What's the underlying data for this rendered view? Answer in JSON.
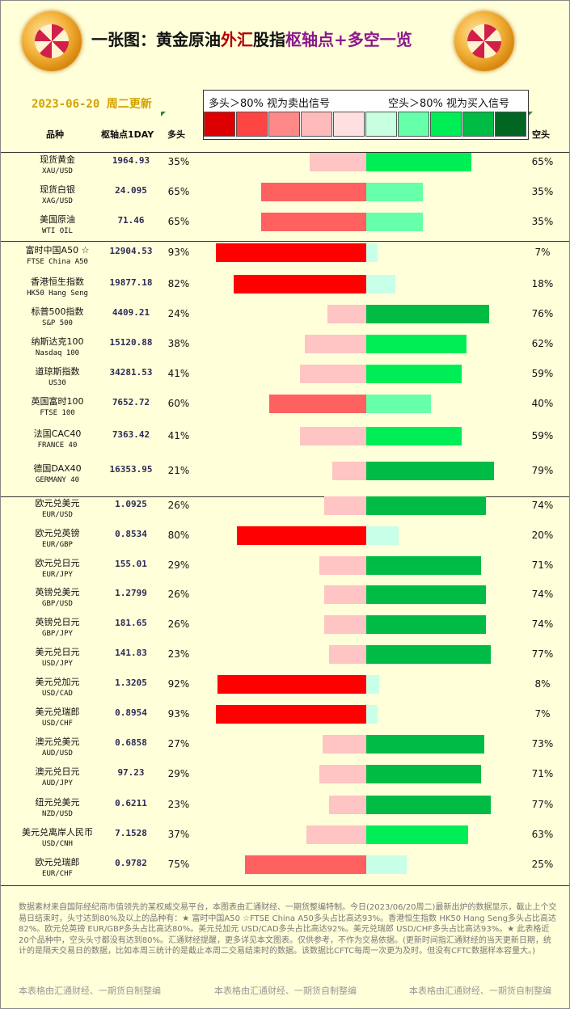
{
  "header": {
    "title_parts": [
      "一张图：黄金原油",
      "外汇",
      "股指",
      "枢轴点",
      "+多空一览"
    ],
    "title_colors": [
      "#111111",
      "#b00000",
      "#111111",
      "#8a1a8a",
      "#8a1a8a"
    ],
    "date": "2023-06-20 周二更新",
    "legend_long": "多头＞80% 视为卖出信号",
    "legend_short": "空头＞80% 视为买入信号"
  },
  "legend_colors": [
    "#dd0000",
    "#ff4444",
    "#ff8888",
    "#ffbbbb",
    "#ffe0e0",
    "#c8ffe0",
    "#66ffaa",
    "#00ee55",
    "#00bb44",
    "#006622"
  ],
  "columns": {
    "name": "品种",
    "pivot": "枢轴点1DAY",
    "long": "多头",
    "short": "空头"
  },
  "colors": {
    "long": [
      "#ffc4c4",
      "#ff6060",
      "#ff0000"
    ],
    "short": [
      "#c8ffe8",
      "#66ffaa",
      "#00ee55",
      "#00bb44"
    ]
  },
  "chart_data": {
    "type": "bar",
    "series": [
      {
        "name": "多头",
        "values": [
          35,
          65,
          65,
          93,
          82,
          24,
          38,
          41,
          60,
          41,
          21,
          26,
          80,
          29,
          26,
          26,
          23,
          92,
          93,
          27,
          29,
          23,
          37,
          75
        ]
      },
      {
        "name": "空头",
        "values": [
          65,
          35,
          35,
          7,
          18,
          76,
          62,
          59,
          40,
          59,
          79,
          74,
          20,
          71,
          74,
          74,
          77,
          8,
          7,
          73,
          71,
          77,
          63,
          25
        ]
      }
    ],
    "rows": [
      {
        "zh": "现货黄金",
        "en": "XAU/USD",
        "pivot": "1964.93",
        "long": 35,
        "short": 65,
        "long_label": "35%",
        "short_label": "65%"
      },
      {
        "zh": "现货白银",
        "en": "XAG/USD",
        "pivot": "24.095",
        "long": 65,
        "short": 35,
        "long_label": "65%",
        "short_label": "35%"
      },
      {
        "zh": "美国原油",
        "en": "WTI OIL",
        "pivot": "71.46",
        "long": 65,
        "short": 35,
        "long_label": "65%",
        "short_label": "35%"
      },
      {
        "zh": "富时中国A50 ☆",
        "en": "FTSE China A50",
        "pivot": "12904.53",
        "long": 93,
        "short": 7,
        "long_label": "93%",
        "short_label": "7%"
      },
      {
        "zh": "香港恒生指数",
        "en": "HK50 Hang Seng",
        "pivot": "19877.18",
        "long": 82,
        "short": 18,
        "long_label": "82%",
        "short_label": "18%"
      },
      {
        "zh": "标普500指数",
        "en": "S&P 500",
        "pivot": "4409.21",
        "long": 24,
        "short": 76,
        "long_label": "24%",
        "short_label": "76%"
      },
      {
        "zh": "纳斯达克100",
        "en": "Nasdaq 100",
        "pivot": "15120.88",
        "long": 38,
        "short": 62,
        "long_label": "38%",
        "short_label": "62%"
      },
      {
        "zh": "道琼斯指数",
        "en": "US30",
        "pivot": "34281.53",
        "long": 41,
        "short": 59,
        "long_label": "41%",
        "short_label": "59%"
      },
      {
        "zh": "英国富时100",
        "en": "FTSE 100",
        "pivot": "7652.72",
        "long": 60,
        "short": 40,
        "long_label": "60%",
        "short_label": "40%"
      },
      {
        "zh": "法国CAC40",
        "en": "FRANCE 40",
        "pivot": "7363.42",
        "long": 41,
        "short": 59,
        "long_label": "41%",
        "short_label": "59%"
      },
      {
        "zh": "德国DAX40",
        "en": "GERMANY 40",
        "pivot": "16353.95",
        "long": 21,
        "short": 79,
        "long_label": "21%",
        "short_label": "79%"
      },
      {
        "zh": "欧元兑美元",
        "en": "EUR/USD",
        "pivot": "1.0925",
        "long": 26,
        "short": 74,
        "long_label": "26%",
        "short_label": "74%"
      },
      {
        "zh": "欧元兑英镑",
        "en": "EUR/GBP",
        "pivot": "0.8534",
        "long": 80,
        "short": 20,
        "long_label": "80%",
        "short_label": "20%"
      },
      {
        "zh": "欧元兑日元",
        "en": "EUR/JPY",
        "pivot": "155.01",
        "long": 29,
        "short": 71,
        "long_label": "29%",
        "short_label": "71%"
      },
      {
        "zh": "英镑兑美元",
        "en": "GBP/USD",
        "pivot": "1.2799",
        "long": 26,
        "short": 74,
        "long_label": "26%",
        "short_label": "74%"
      },
      {
        "zh": "英镑兑日元",
        "en": "GBP/JPY",
        "pivot": "181.65",
        "long": 26,
        "short": 74,
        "long_label": "26%",
        "short_label": "74%"
      },
      {
        "zh": "美元兑日元",
        "en": "USD/JPY",
        "pivot": "141.83",
        "long": 23,
        "short": 77,
        "long_label": "23%",
        "short_label": "77%"
      },
      {
        "zh": "美元兑加元",
        "en": "USD/CAD",
        "pivot": "1.3205",
        "long": 92,
        "short": 8,
        "long_label": "92%",
        "short_label": "8%"
      },
      {
        "zh": "美元兑瑞郎",
        "en": "USD/CHF",
        "pivot": "0.8954",
        "long": 93,
        "short": 7,
        "long_label": "93%",
        "short_label": "7%"
      },
      {
        "zh": "澳元兑美元",
        "en": "AUD/USD",
        "pivot": "0.6858",
        "long": 27,
        "short": 73,
        "long_label": "27%",
        "short_label": "73%"
      },
      {
        "zh": "澳元兑日元",
        "en": "AUD/JPY",
        "pivot": "97.23",
        "long": 29,
        "short": 71,
        "long_label": "29%",
        "short_label": "71%"
      },
      {
        "zh": "纽元兑美元",
        "en": "NZD/USD",
        "pivot": "0.6211",
        "long": 23,
        "short": 77,
        "long_label": "23%",
        "short_label": "77%"
      },
      {
        "zh": "美元兑离岸人民币",
        "en": "USD/CNH",
        "pivot": "7.1528",
        "long": 37,
        "short": 63,
        "long_label": "37%",
        "short_label": "63%"
      },
      {
        "zh": "欧元兑瑞郎",
        "en": "EUR/CHF",
        "pivot": "0.9782",
        "long": 75,
        "short": 25,
        "long_label": "75%",
        "short_label": "25%"
      }
    ]
  },
  "footer": {
    "note": "数据素材来自国际经纪商市值领先的某权威交易平台，本图表由汇通财经、一期货整编特制。今日(2023/06/20周二)最新出炉的数据显示，截止上个交易日结束时，头寸达到80%及以上的品种有：★ 富时中国A50 ☆FTSE China A50多头占比高达93%。香港恒生指数 HK50 Hang Seng多头占比高达82%。欧元兑英镑 EUR/GBP多头占比高达80%。美元兑加元 USD/CAD多头占比高达92%。美元兑瑞郎 USD/CHF多头占比高达93%。★ 此表格近20个品种中，空头头寸都没有达到80%。汇通财经提醒，更多详见本文图表。仅供参考，不作为交易依据。(更新时间指汇通财经的当天更新日期，统计的是隔天交易日的数据，比如本周三统计的是截止本周二交易结束时的数据。该数据比CFTC每周一次更为及时。但没有CFTC数据样本容量大。)",
    "credit": "本表格由汇通财经、一期货自制整编"
  }
}
